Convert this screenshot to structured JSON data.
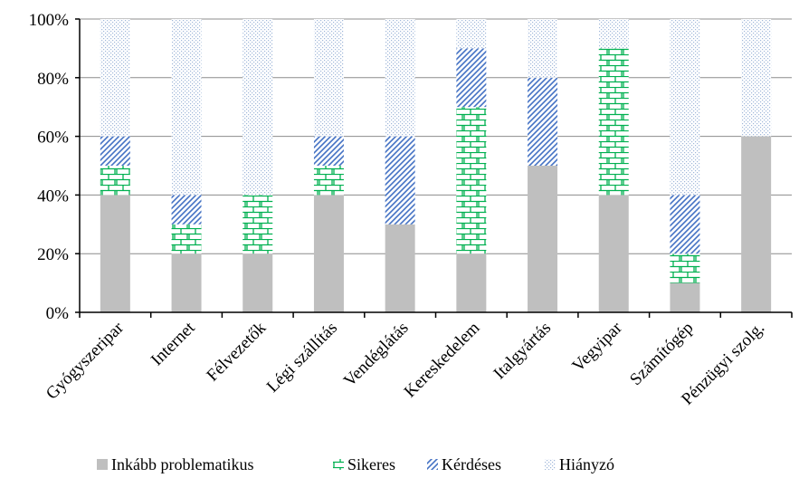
{
  "chart_data": {
    "type": "bar",
    "stacked": true,
    "title": "",
    "xlabel": "",
    "ylabel": "",
    "ylim": [
      0,
      100
    ],
    "yticks": [
      "0%",
      "20%",
      "40%",
      "60%",
      "80%",
      "100%"
    ],
    "ytick_values": [
      0,
      20,
      40,
      60,
      80,
      100
    ],
    "grid": "horizontal",
    "legend_position": "bottom",
    "categories": [
      "Gyógyszeripar",
      "Internet",
      "Félvezetők",
      "Légi szállítás",
      "Vendéglátás",
      "Kereskedelem",
      "Italgyártás",
      "Vegyipar",
      "Számítógép",
      "Pénzügyi szolg."
    ],
    "series": [
      {
        "name": "Inkább problematikus",
        "color": "#bfbfbf",
        "pattern": "solid",
        "values": [
          40,
          20,
          20,
          40,
          30,
          20,
          50,
          40,
          10,
          60
        ]
      },
      {
        "name": "Sikeres",
        "color": "#00b050",
        "pattern": "brick",
        "values": [
          10,
          10,
          20,
          10,
          0,
          50,
          0,
          50,
          10,
          0
        ]
      },
      {
        "name": "Kérdéses",
        "color": "#4472c4",
        "pattern": "diagonal",
        "values": [
          10,
          10,
          0,
          10,
          30,
          20,
          30,
          0,
          20,
          0
        ]
      },
      {
        "name": "Hiányzó",
        "color": "#b4c7e7",
        "pattern": "dotted",
        "values": [
          40,
          60,
          60,
          40,
          40,
          10,
          20,
          10,
          60,
          40
        ]
      }
    ]
  }
}
